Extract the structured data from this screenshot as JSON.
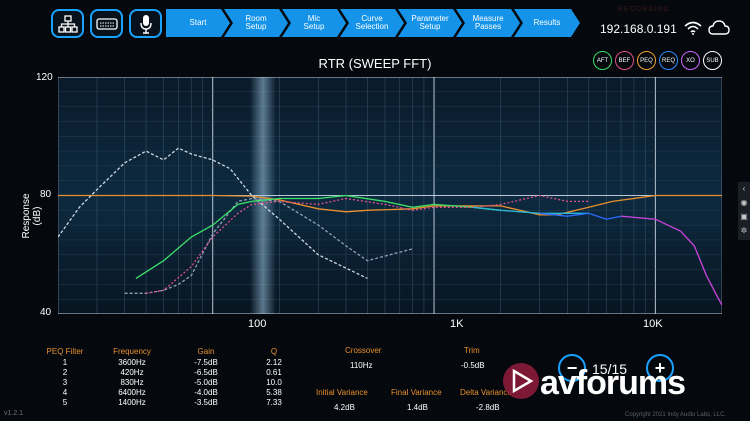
{
  "toolbar": {
    "icons": [
      "network-icon",
      "receiver-icon",
      "microphone-icon"
    ],
    "steps": [
      {
        "label": "Start",
        "active": true
      },
      {
        "label": "Room Setup",
        "active": true
      },
      {
        "label": "Mic Setup",
        "active": true
      },
      {
        "label": "Curve Selection",
        "active": true
      },
      {
        "label": "Parameter Setup",
        "active": true
      },
      {
        "label": "Measure Passes",
        "active": true
      },
      {
        "label": "Results",
        "active": true
      }
    ],
    "status": "RECORDING",
    "ip": "192.168.0.191"
  },
  "chart_data": {
    "type": "line",
    "title": "RTR (SWEEP FFT)",
    "ylabel": "Response (dB)",
    "xlabel": "",
    "x_scale": "log",
    "xlim": [
      20,
      20000
    ],
    "ylim": [
      40,
      120
    ],
    "x_ticks": [
      "100",
      "1K",
      "10K"
    ],
    "y_ticks": [
      "120",
      "80",
      "40"
    ],
    "grid": true,
    "legend": [
      "AFT",
      "BEF",
      "PEQ",
      "REQ",
      "XO",
      "SUB"
    ],
    "legend_colors": {
      "AFT": "#3fe06a",
      "BEF": "#e0508a",
      "PEQ": "#f0a030",
      "REQ": "#2a8cff",
      "XO": "#cc66ff",
      "SUB": "#ffffff"
    },
    "series": [
      {
        "color": "#e8902d",
        "x": [
          20,
          50,
          100,
          150,
          200,
          300,
          400,
          500,
          800,
          1000,
          2000,
          3000,
          3600,
          5000,
          6400,
          10000,
          20000
        ],
        "y": [
          80,
          80,
          80,
          79.8,
          78.5,
          75.5,
          74.5,
          75,
          75.5,
          76.5,
          76.5,
          73.5,
          73.5,
          76,
          78,
          80,
          80
        ]
      },
      {
        "color": "#cfd8e0",
        "x": [
          20,
          25,
          30,
          40,
          50,
          60,
          70,
          80,
          100,
          120,
          150,
          200,
          300,
          500
        ],
        "y": [
          66,
          76,
          82,
          91,
          95,
          92,
          96,
          94,
          92,
          89,
          80,
          72,
          60,
          52
        ]
      },
      {
        "color": "#8fa0b8",
        "x": [
          40,
          50,
          60,
          70,
          80,
          100,
          130,
          150,
          200,
          300,
          400,
          500,
          800
        ],
        "y": [
          47,
          47,
          48,
          50,
          53,
          67,
          78,
          79,
          78,
          70,
          63,
          58,
          62
        ]
      },
      {
        "color": "#3fe06a",
        "x": [
          45,
          60,
          80,
          100,
          130,
          150,
          200,
          300,
          400,
          600,
          800,
          1000,
          1500,
          2000
        ],
        "y": [
          52,
          58,
          66,
          70,
          77,
          78,
          79,
          79,
          80,
          78,
          76,
          77,
          76,
          75
        ]
      },
      {
        "color": "#e0508a",
        "x": [
          50,
          60,
          80,
          100,
          130,
          150,
          200,
          300,
          400,
          600,
          800,
          1000,
          1500,
          2000,
          3000,
          4000,
          5000
        ],
        "y": [
          47,
          48,
          56,
          66,
          74,
          77,
          78,
          77,
          79,
          77,
          75,
          76,
          76,
          77,
          80,
          78,
          78
        ]
      },
      {
        "color": "#2bb8d8",
        "x": [
          1500,
          2000,
          3000,
          4000,
          5000
        ],
        "y": [
          76,
          75,
          74,
          74,
          74
        ]
      },
      {
        "color": "#2a6cff",
        "x": [
          3000,
          4000,
          5000,
          6000,
          7000
        ],
        "y": [
          74,
          73,
          74,
          72,
          73
        ]
      },
      {
        "color": "#cc44dd",
        "x": [
          7000,
          10000,
          13000,
          15000,
          17000,
          19000,
          20000
        ],
        "y": [
          73,
          72,
          68,
          63,
          53,
          46,
          43
        ]
      }
    ]
  },
  "peq_table": {
    "headers": [
      "PEQ Filter",
      "Frequency",
      "Gain",
      "Q"
    ],
    "rows": [
      [
        "1",
        "3600Hz",
        "-7.5dB",
        "2.12"
      ],
      [
        "2",
        "420Hz",
        "-6.5dB",
        "0.61"
      ],
      [
        "3",
        "830Hz",
        "-5.0dB",
        "10.0"
      ],
      [
        "4",
        "6400Hz",
        "-4.0dB",
        "5.38"
      ],
      [
        "5",
        "1400Hz",
        "-3.5dB",
        "7.33"
      ]
    ]
  },
  "crossover": {
    "label": "Crossover",
    "value": "110Hz"
  },
  "trim": {
    "label": "Trim",
    "value": "-0.5dB"
  },
  "variance": {
    "initial_label": "Initial Variance",
    "initial_value": "4.2dB",
    "final_label": "Final Variance",
    "final_value": "1.4dB",
    "delta_label": "Delta Variance",
    "delta_value": "-2.8dB"
  },
  "pager": {
    "text": "15/15",
    "minus": "−",
    "plus": "+"
  },
  "version": "v1.2.1",
  "copyright": "Copyright 2021 Indy Audio Labs, LLC.",
  "watermark": "avforums"
}
